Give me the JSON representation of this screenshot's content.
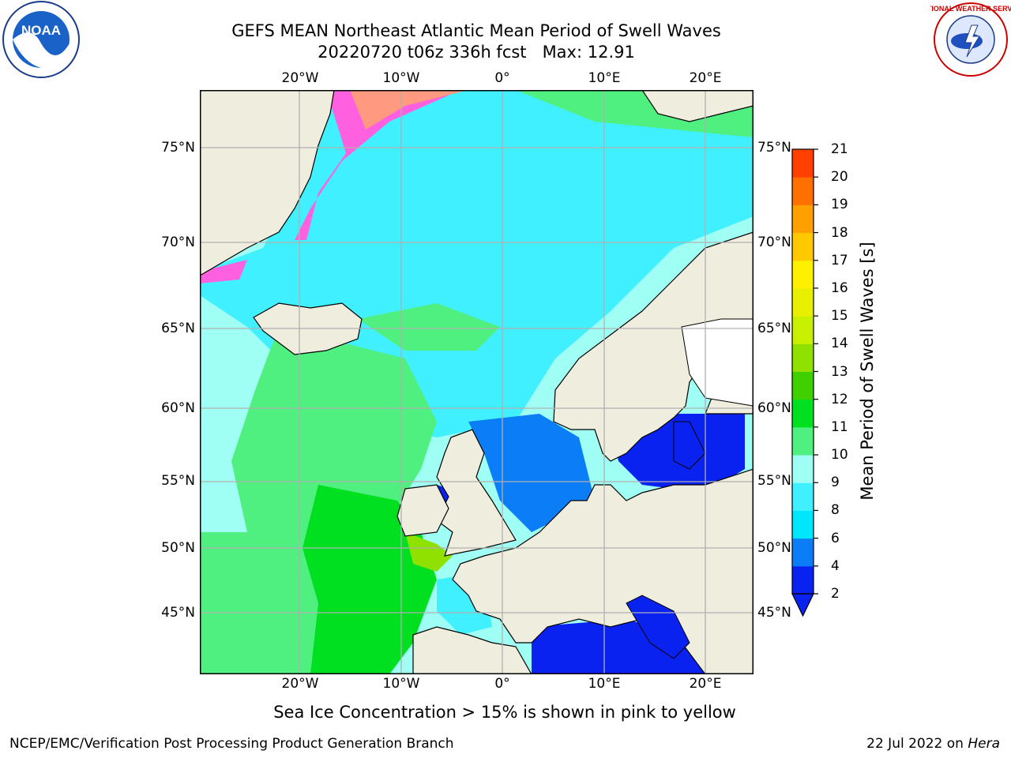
{
  "title": {
    "line1": "GEFS MEAN Northeast Atlantic Mean Period of Swell Waves",
    "line2": "20220720 t06z 336h fcst   Max: 12.91"
  },
  "map": {
    "lon_ticks": [
      "20°W",
      "10°W",
      "0°",
      "10°E",
      "20°E"
    ],
    "lat_ticks": [
      "75°N",
      "70°N",
      "65°N",
      "60°N",
      "55°N",
      "50°N",
      "45°N"
    ],
    "land_color": "#eeedde",
    "grid_color": "#b0b0b0"
  },
  "colorbar": {
    "label": "Mean Period of Swell Waves [s]",
    "ticks": [
      "2",
      "4",
      "6",
      "8",
      "9",
      "10",
      "11",
      "12",
      "13",
      "14",
      "15",
      "16",
      "17",
      "18",
      "19",
      "20",
      "21"
    ],
    "colors": [
      "#0a22f0",
      "#0a7df7",
      "#00e6ff",
      "#40f0ff",
      "#a0fff4",
      "#50f080",
      "#00e020",
      "#40d000",
      "#90e000",
      "#c8f000",
      "#e8f000",
      "#fff000",
      "#ffc800",
      "#ffa000",
      "#ff7000",
      "#ff4000",
      "#ff1000"
    ]
  },
  "footnote": "Sea Ice Concentration > 15% is shown in pink to yellow",
  "credit_left": "NCEP/EMC/Verification Post Processing Product Generation Branch",
  "credit_right_date": "22 Jul 2022 on",
  "credit_right_machine": "Hera",
  "logos": {
    "noaa_text": "NOAA",
    "nws_text": "NATIONAL WEATHER SERVICE"
  }
}
